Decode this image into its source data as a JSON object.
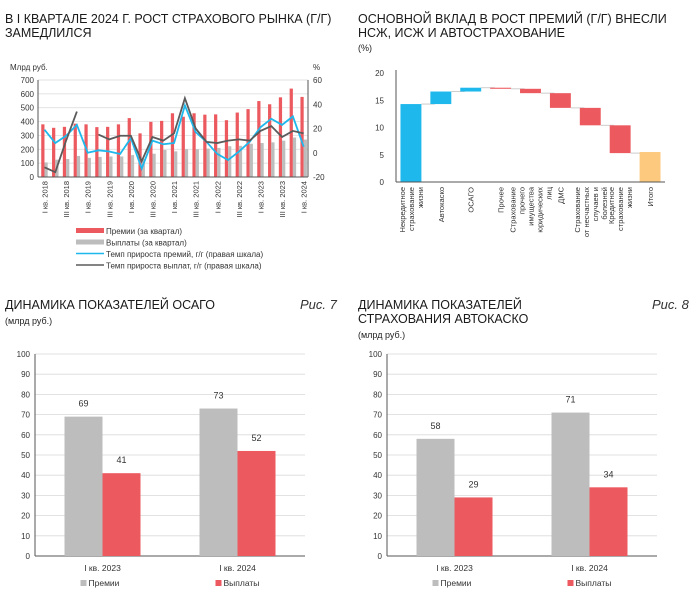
{
  "colors": {
    "premiums": "#ec5a5f",
    "payouts": "#bdbdbd",
    "premium_growth": "#1eb8ec",
    "payout_growth": "#5b5b5b",
    "total": "#fdc97e",
    "grid": "#d9d9d9"
  },
  "panels": {
    "p1": {
      "title": "В I квартале 2024 г. рост страхового рынка (г/г) замедлился"
    },
    "p2": {
      "title": "Основной вклад в рост премий (г/г) внесли НСЖ, ИСЖ и автострахование",
      "subtitle": "(%)"
    },
    "p3": {
      "title": "Динамика показателей ОСАГО",
      "subtitle": "(млрд руб.)",
      "fig": "Рис. 7"
    },
    "p4": {
      "title": "Динамика показателей страхования автокаско",
      "subtitle": "(млрд руб.)",
      "fig": "Рис. 8"
    }
  },
  "chart_data": [
    {
      "type": "bar+line",
      "ylabel": "Млрд руб.",
      "y2label": "%",
      "ylim": [
        0,
        700
      ],
      "y2lim": [
        -20,
        60
      ],
      "grid": true,
      "legend": "bottom",
      "tick_labels": [
        "I кв. 2018",
        "III кв. 2018",
        "I кв. 2019",
        "III кв. 2019",
        "I кв. 2020",
        "III кв. 2020",
        "I кв. 2021",
        "III кв. 2021",
        "I кв. 2022",
        "III кв. 2022",
        "I кв. 2023",
        "III кв. 2023",
        "I кв. 2024"
      ],
      "series": [
        {
          "name": "Премии (за квартал)",
          "kind": "bar",
          "values": [
            380,
            355,
            362,
            385,
            380,
            360,
            362,
            380,
            425,
            315,
            398,
            405,
            460,
            435,
            460,
            450,
            452,
            410,
            465,
            490,
            548,
            525,
            575,
            638,
            578
          ]
        },
        {
          "name": "Выплаты (за квартал)",
          "kind": "bar",
          "values": [
            105,
            125,
            130,
            152,
            138,
            145,
            148,
            148,
            158,
            130,
            168,
            195,
            185,
            200,
            200,
            205,
            210,
            222,
            225,
            240,
            245,
            250,
            262,
            285,
            270
          ]
        },
        {
          "name": "Темп прироста премий, г/г (правая шкала)",
          "kind": "line",
          "values": [
            19,
            8,
            14,
            23,
            0,
            2,
            1,
            -1,
            12,
            -13,
            10,
            7,
            8,
            39,
            17,
            9,
            -1,
            -6,
            1,
            9,
            21,
            28,
            23,
            30,
            5
          ]
        },
        {
          "name": "Темп прироста выплат, г/г (правая шкала)",
          "kind": "line",
          "values": [
            -12,
            -16,
            10,
            34,
            null,
            15,
            11,
            14,
            14,
            -7,
            13,
            10,
            16,
            45,
            20,
            9,
            8,
            10,
            11,
            10,
            18,
            22,
            13,
            18,
            16
          ]
        }
      ]
    },
    {
      "type": "waterfall",
      "ylim": [
        0,
        20
      ],
      "grid": false,
      "categories": [
        "Некредитное страхование жизни",
        "Автокаско",
        "ОСАГО",
        "Прочее",
        "Страхование прочего имущества юридических лиц",
        "ДМС",
        "Страхование от несчастных случаев и болезней",
        "Кредитное страхование жизни",
        "Итого"
      ],
      "values": [
        14.3,
        2.3,
        0.7,
        -0.2,
        -0.8,
        -2.7,
        -3.2,
        -5.1,
        5.5
      ]
    },
    {
      "type": "bar",
      "ylim": [
        0,
        100
      ],
      "grid": true,
      "legend": "bottom",
      "categories": [
        "I кв. 2023",
        "I кв. 2024"
      ],
      "series": [
        {
          "name": "Премии",
          "values": [
            69,
            73
          ]
        },
        {
          "name": "Выплаты",
          "values": [
            41,
            52
          ]
        }
      ]
    },
    {
      "type": "bar",
      "ylim": [
        0,
        100
      ],
      "grid": true,
      "legend": "bottom",
      "categories": [
        "I кв. 2023",
        "I кв. 2024"
      ],
      "series": [
        {
          "name": "Премии",
          "values": [
            58,
            71
          ]
        },
        {
          "name": "Выплаты",
          "values": [
            29,
            34
          ]
        }
      ]
    }
  ]
}
